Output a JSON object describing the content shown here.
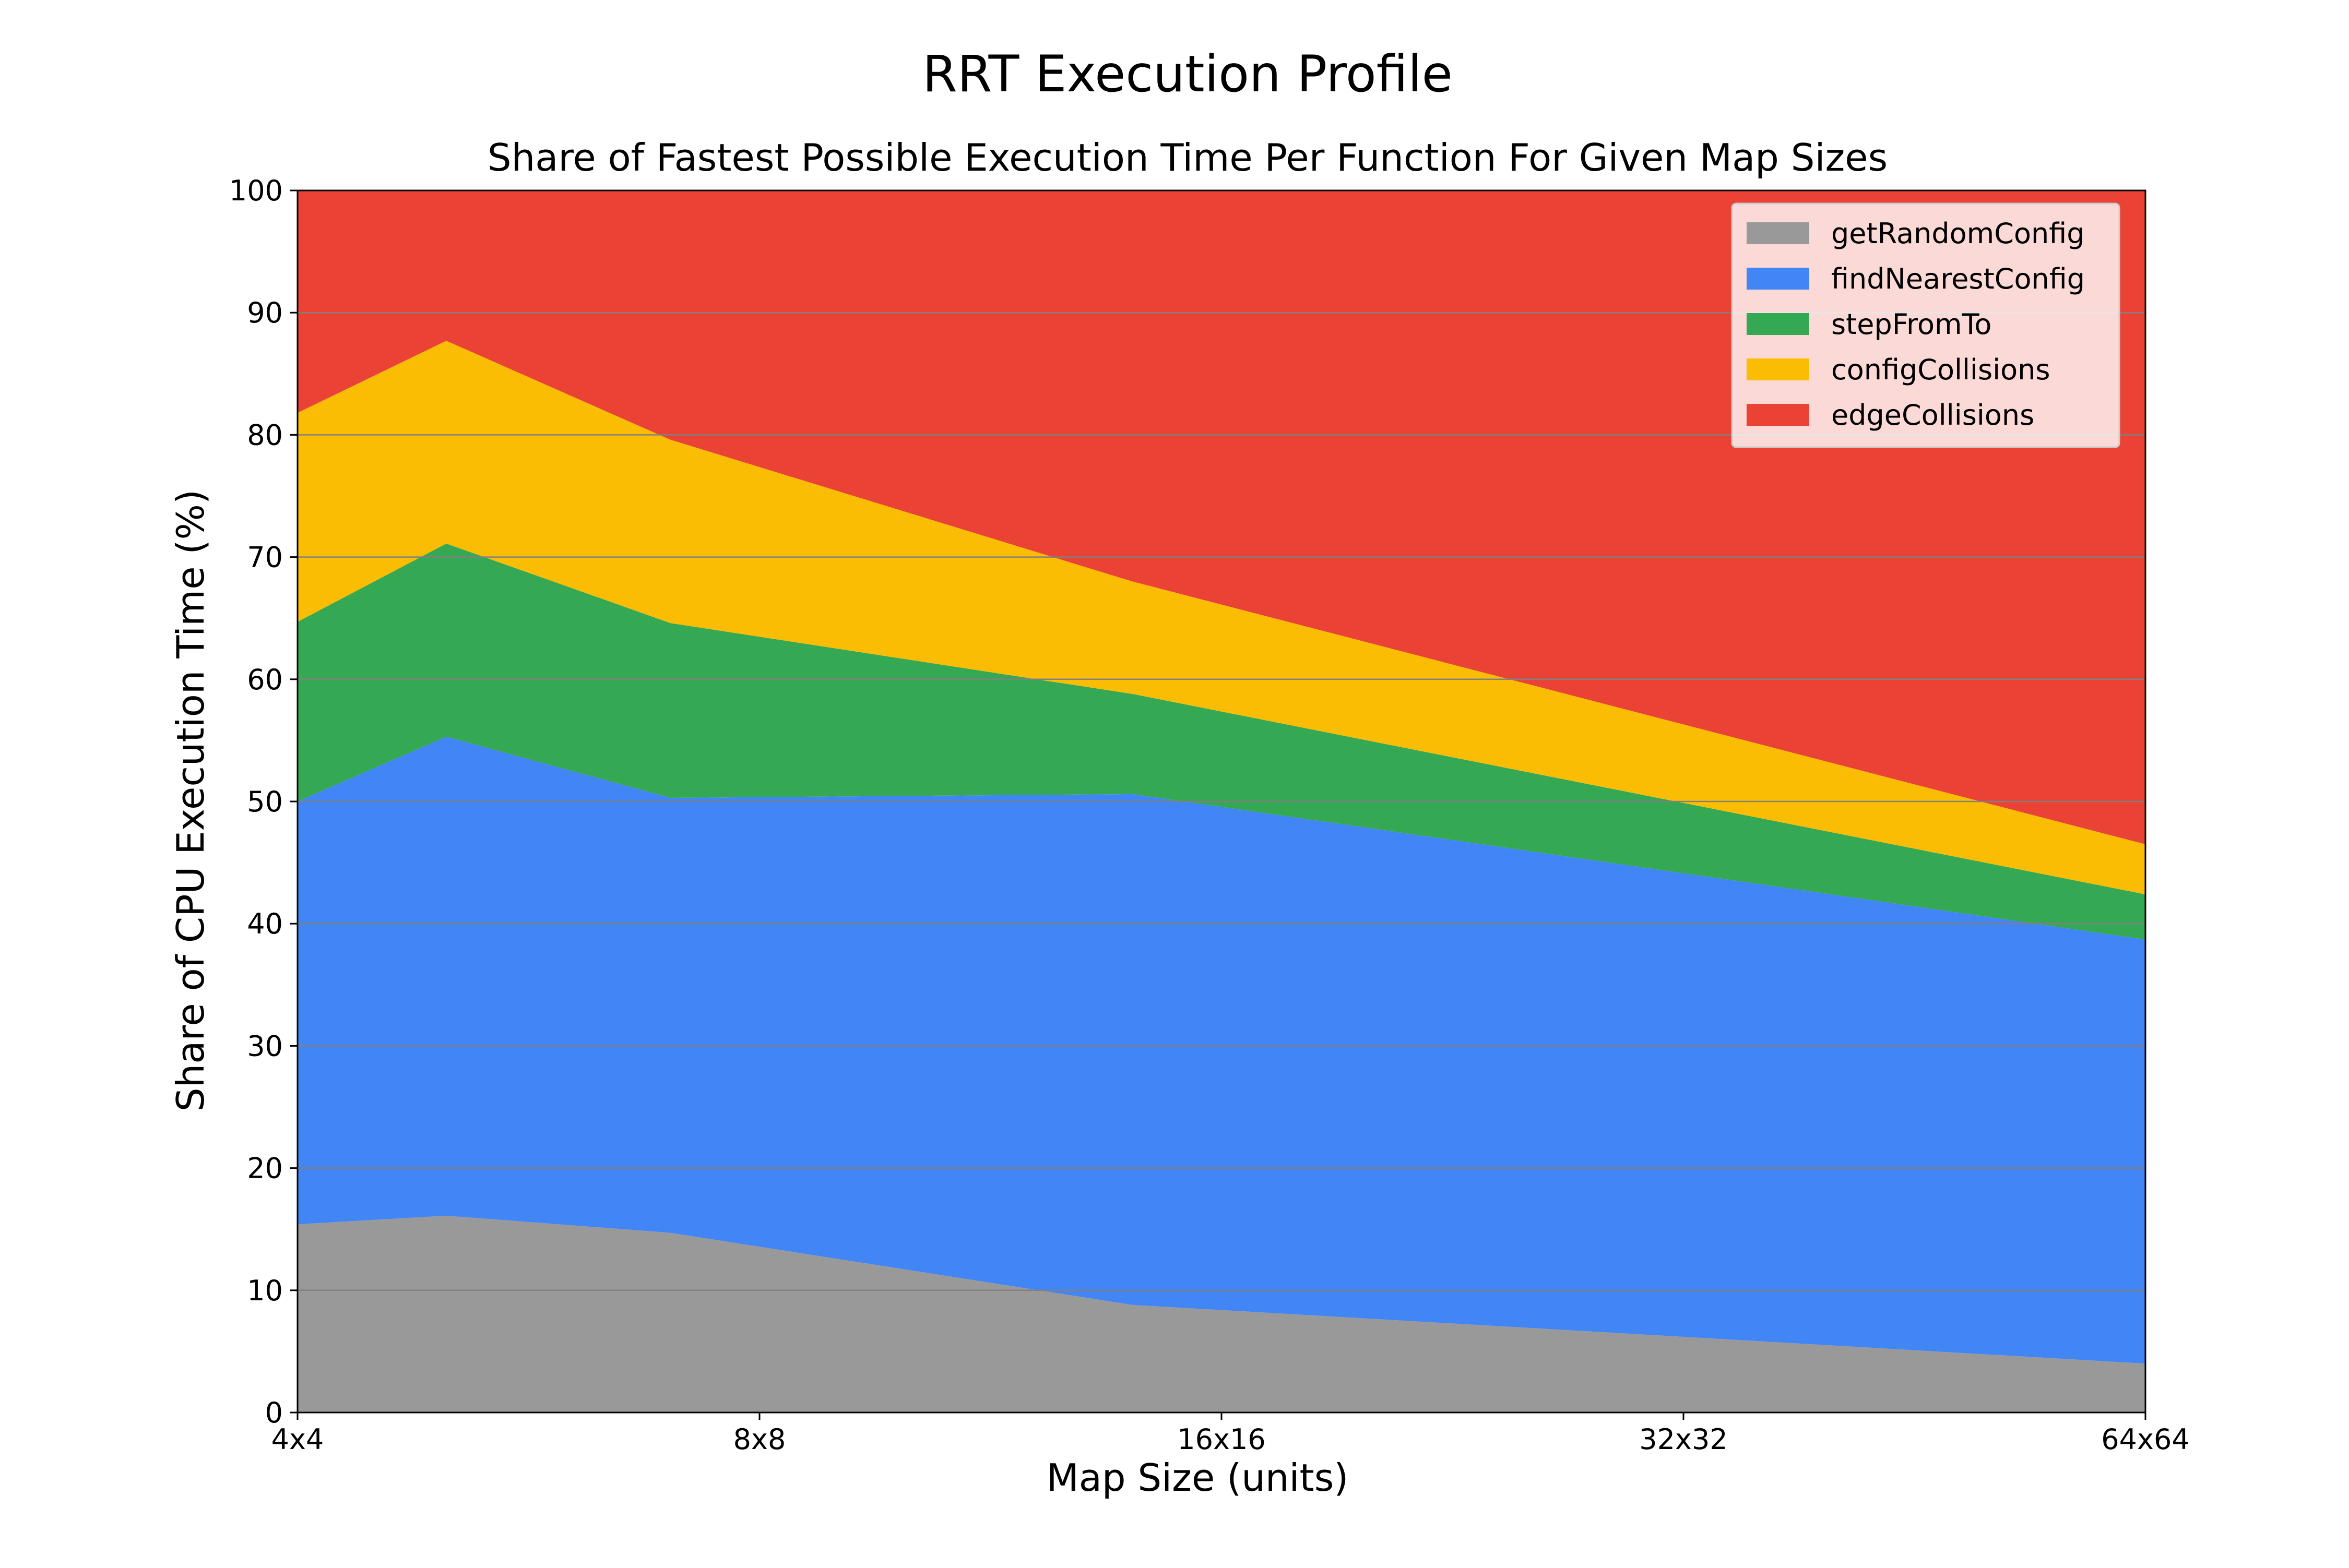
{
  "chart_data": {
    "type": "area",
    "stacked": true,
    "title": "RRT Execution Profile",
    "subtitle": "Share of Fastest Possible Execution Time Per Function For Given Map Sizes",
    "xlabel": "Map Size (units)",
    "ylabel": "Share of CPU Execution Time (%)",
    "x_scale": "log2",
    "x": [
      4,
      5,
      7,
      14,
      64
    ],
    "x_ticks": [
      {
        "value": 4,
        "label": "4x4"
      },
      {
        "value": 8,
        "label": "8x8"
      },
      {
        "value": 16,
        "label": "16x16"
      },
      {
        "value": 32,
        "label": "32x32"
      },
      {
        "value": 64,
        "label": "64x64"
      }
    ],
    "ylim": [
      0,
      100
    ],
    "y_ticks": [
      0,
      10,
      20,
      30,
      40,
      50,
      60,
      70,
      80,
      90,
      100
    ],
    "grid": "horizontal",
    "legend_position": "top-right",
    "series": [
      {
        "name": "getRandomConfig",
        "color": "#999999",
        "values": [
          15.4,
          16.1,
          14.7,
          8.8,
          4.0
        ]
      },
      {
        "name": "findNearestConfig",
        "color": "#4285f4",
        "values": [
          34.6,
          39.2,
          35.6,
          41.8,
          34.7
        ]
      },
      {
        "name": "stepFromTo",
        "color": "#34a853",
        "values": [
          14.7,
          15.8,
          14.3,
          8.2,
          3.7
        ]
      },
      {
        "name": "configCollisions",
        "color": "#fbbc04",
        "values": [
          17.1,
          16.6,
          15.0,
          9.2,
          4.1
        ]
      },
      {
        "name": "edgeCollisions",
        "color": "#ea4335",
        "values": [
          18.2,
          12.3,
          20.4,
          32.0,
          53.5
        ]
      }
    ]
  }
}
